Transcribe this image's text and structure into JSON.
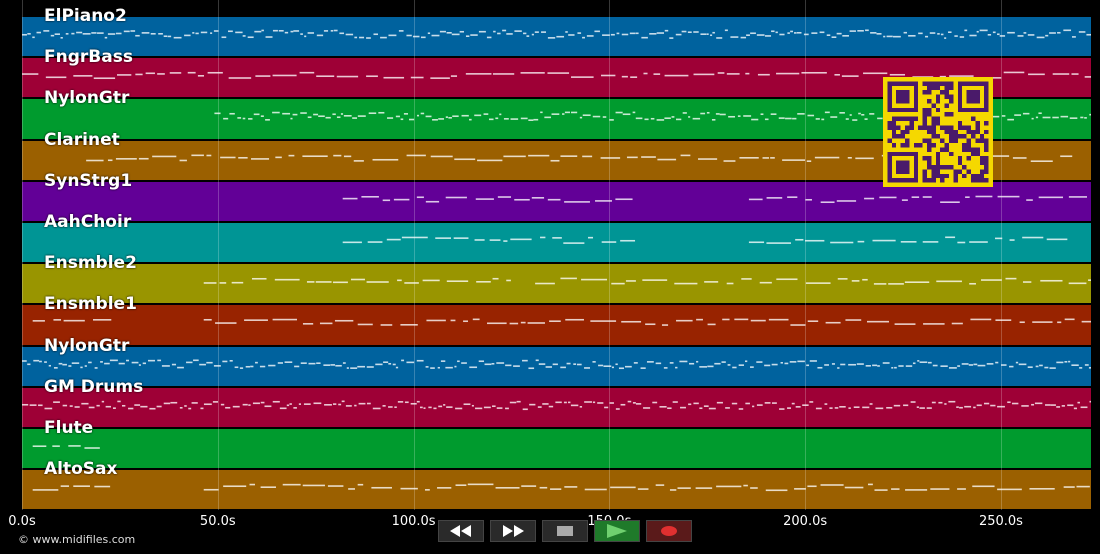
{
  "tracks": [
    {
      "name": "ElPiano2",
      "color": "#00629e"
    },
    {
      "name": "FngrBass",
      "color": "#9e0036"
    },
    {
      "name": "NylonGtr",
      "color": "#009b2e"
    },
    {
      "name": "Clarinet",
      "color": "#9b6000"
    },
    {
      "name": "SynStrg1",
      "color": "#620097"
    },
    {
      "name": "AahChoir",
      "color": "#009595"
    },
    {
      "name": "Ensmble2",
      "color": "#999500"
    },
    {
      "name": "Ensmble1",
      "color": "#982300"
    },
    {
      "name": "NylonGtr",
      "color": "#00629e"
    },
    {
      "name": "GM Drums",
      "color": "#9e0036"
    },
    {
      "name": "Flute",
      "color": "#009b2e"
    },
    {
      "name": "AltoSax",
      "color": "#9b6000"
    }
  ],
  "timeline": {
    "ticks": [
      "0.0s",
      "50.0s",
      "100.0s",
      "150.0s",
      "200.0s",
      "250.0s"
    ],
    "tick_values": [
      0,
      50,
      100,
      150,
      200,
      250
    ],
    "max_seconds": 273
  },
  "copyright": "© www.midifiles.com",
  "controls": [
    {
      "name": "rewind-button",
      "icon": "rewind-icon"
    },
    {
      "name": "fast-forward-button",
      "icon": "fast-forward-icon"
    },
    {
      "name": "stop-button",
      "icon": "stop-icon"
    },
    {
      "name": "play-button",
      "icon": "play-icon"
    },
    {
      "name": "record-button",
      "icon": "record-icon"
    }
  ],
  "qr_code": {
    "icon": "qr-code-icon",
    "color": "#f5d800",
    "dark": "#4a1a6a"
  }
}
